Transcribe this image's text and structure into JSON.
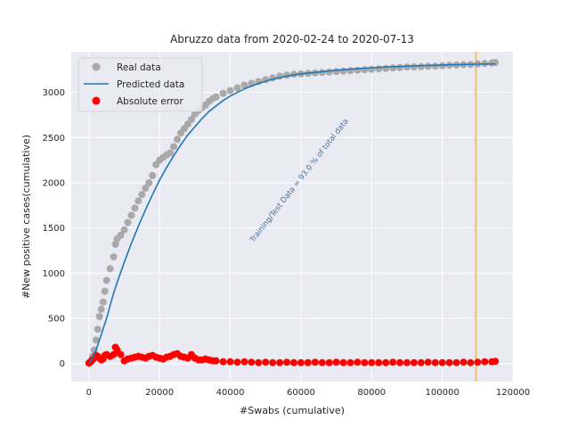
{
  "chart_data": {
    "type": "scatter",
    "title": "Abruzzo data  from 2020-02-24 to 2020-07-13",
    "xlabel": "#Swabs (cumulative)",
    "ylabel": "#New positive cases(cumulative)",
    "xlim": [
      -5000,
      120000
    ],
    "ylim": [
      -200,
      3450
    ],
    "xticks": [
      0,
      20000,
      40000,
      60000,
      80000,
      100000,
      120000
    ],
    "yticks": [
      0,
      500,
      1000,
      1500,
      2000,
      2500,
      3000
    ],
    "grid": true,
    "legend_position": "top-left",
    "split_line_x": 109500,
    "annotation": "Training/Test Data = 93.0 % of total data",
    "colors": {
      "background": "#eaeaf2",
      "grid": "#ffffff",
      "real": "#a9a9a9",
      "predicted": "#1f77b4",
      "error": "#ff0000",
      "split_line": "#f0c070",
      "annotation": "#4a6fa5"
    },
    "series": [
      {
        "name": "Real data",
        "kind": "scatter",
        "x": [
          0,
          500,
          1000,
          1500,
          2000,
          2500,
          3000,
          3500,
          4000,
          4500,
          5000,
          6000,
          7000,
          7500,
          8000,
          9000,
          10000,
          11000,
          12000,
          13000,
          14000,
          15000,
          16000,
          17000,
          18000,
          19000,
          20000,
          21000,
          22000,
          23000,
          24000,
          25000,
          26000,
          27000,
          28000,
          29000,
          30000,
          31000,
          32000,
          33000,
          34000,
          35000,
          36000,
          38000,
          40000,
          42000,
          44000,
          46000,
          48000,
          50000,
          52000,
          54000,
          56000,
          58000,
          60000,
          62000,
          64000,
          66000,
          68000,
          70000,
          72000,
          74000,
          76000,
          78000,
          80000,
          82000,
          84000,
          86000,
          88000,
          90000,
          92000,
          94000,
          96000,
          98000,
          100000,
          102000,
          104000,
          106000,
          108000,
          110000,
          112000,
          114000,
          115000
        ],
        "y": [
          5,
          30,
          80,
          150,
          260,
          380,
          520,
          600,
          680,
          800,
          920,
          1050,
          1180,
          1320,
          1380,
          1420,
          1480,
          1560,
          1640,
          1720,
          1800,
          1870,
          1940,
          2000,
          2080,
          2200,
          2250,
          2280,
          2310,
          2330,
          2400,
          2480,
          2550,
          2600,
          2650,
          2700,
          2760,
          2800,
          2830,
          2860,
          2900,
          2930,
          2950,
          2990,
          3020,
          3050,
          3080,
          3100,
          3120,
          3140,
          3160,
          3180,
          3190,
          3200,
          3205,
          3210,
          3215,
          3220,
          3225,
          3230,
          3235,
          3240,
          3245,
          3250,
          3255,
          3260,
          3265,
          3270,
          3275,
          3280,
          3282,
          3285,
          3288,
          3290,
          3295,
          3300,
          3303,
          3306,
          3310,
          3315,
          3320,
          3325,
          3330
        ]
      },
      {
        "name": "Predicted data",
        "kind": "line",
        "x": [
          0,
          1000,
          2000,
          3000,
          4000,
          5000,
          6000,
          7000,
          8000,
          10000,
          12000,
          14000,
          16000,
          18000,
          20000,
          22000,
          24000,
          26000,
          28000,
          30000,
          32000,
          34000,
          36000,
          38000,
          40000,
          44000,
          48000,
          52000,
          56000,
          60000,
          65000,
          70000,
          75000,
          80000,
          85000,
          90000,
          95000,
          100000,
          105000,
          110000,
          115000
        ],
        "y": [
          0,
          60,
          150,
          260,
          380,
          500,
          640,
          780,
          900,
          1120,
          1330,
          1520,
          1700,
          1870,
          2030,
          2170,
          2300,
          2420,
          2530,
          2620,
          2710,
          2790,
          2850,
          2910,
          2960,
          3040,
          3100,
          3145,
          3180,
          3205,
          3225,
          3245,
          3260,
          3272,
          3282,
          3290,
          3297,
          3303,
          3308,
          3312,
          3315
        ]
      },
      {
        "name": "Absolute error",
        "kind": "scatter",
        "x": [
          0,
          500,
          1000,
          1500,
          2000,
          2500,
          3000,
          3500,
          4000,
          4500,
          5000,
          6000,
          7000,
          7500,
          8000,
          9000,
          10000,
          11000,
          12000,
          13000,
          14000,
          15000,
          16000,
          17000,
          18000,
          19000,
          20000,
          21000,
          22000,
          23000,
          24000,
          25000,
          26000,
          27000,
          28000,
          29000,
          30000,
          31000,
          32000,
          33000,
          34000,
          35000,
          36000,
          38000,
          40000,
          42000,
          44000,
          46000,
          48000,
          50000,
          52000,
          54000,
          56000,
          58000,
          60000,
          62000,
          64000,
          66000,
          68000,
          70000,
          72000,
          74000,
          76000,
          78000,
          80000,
          82000,
          84000,
          86000,
          88000,
          90000,
          92000,
          94000,
          96000,
          98000,
          100000,
          102000,
          104000,
          106000,
          108000,
          110000,
          112000,
          114000,
          115000
        ],
        "y": [
          5,
          20,
          40,
          60,
          90,
          80,
          60,
          40,
          50,
          90,
          100,
          80,
          100,
          180,
          150,
          100,
          30,
          50,
          60,
          70,
          80,
          70,
          60,
          80,
          90,
          70,
          60,
          50,
          70,
          80,
          100,
          110,
          80,
          70,
          60,
          100,
          60,
          40,
          40,
          50,
          40,
          30,
          30,
          20,
          20,
          15,
          20,
          15,
          10,
          15,
          10,
          10,
          15,
          10,
          10,
          10,
          15,
          10,
          10,
          15,
          10,
          10,
          15,
          10,
          10,
          10,
          10,
          15,
          10,
          10,
          10,
          10,
          15,
          10,
          10,
          10,
          10,
          15,
          10,
          15,
          20,
          20,
          25
        ]
      }
    ]
  }
}
